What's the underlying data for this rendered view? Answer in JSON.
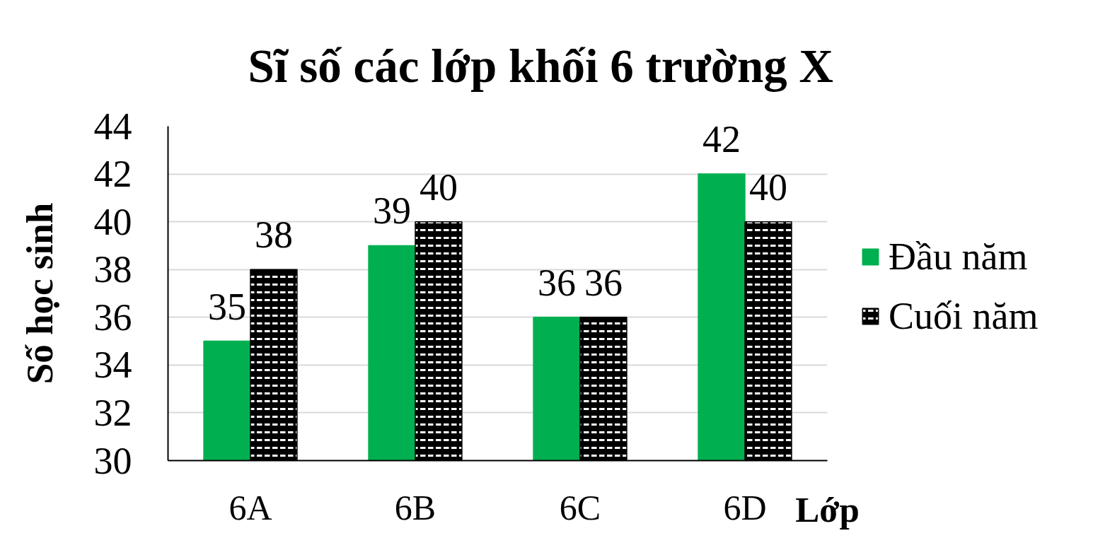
{
  "chart_data": {
    "type": "bar",
    "title": "Sĩ số các lớp khối 6 trường X",
    "xlabel": "Lớp",
    "ylabel": "Số học sinh",
    "categories": [
      "6A",
      "6B",
      "6C",
      "6D"
    ],
    "series": [
      {
        "name": "Đầu năm",
        "color": "#00b050",
        "values": [
          35,
          39,
          36,
          42
        ]
      },
      {
        "name": "Cuối năm",
        "color": "#000000",
        "values": [
          38,
          40,
          36,
          40
        ]
      }
    ],
    "ylim": [
      30,
      44
    ],
    "yticks": [
      30,
      32,
      34,
      36,
      38,
      40,
      42,
      44
    ],
    "grid": "y",
    "legend": "right",
    "data_labels": true
  }
}
